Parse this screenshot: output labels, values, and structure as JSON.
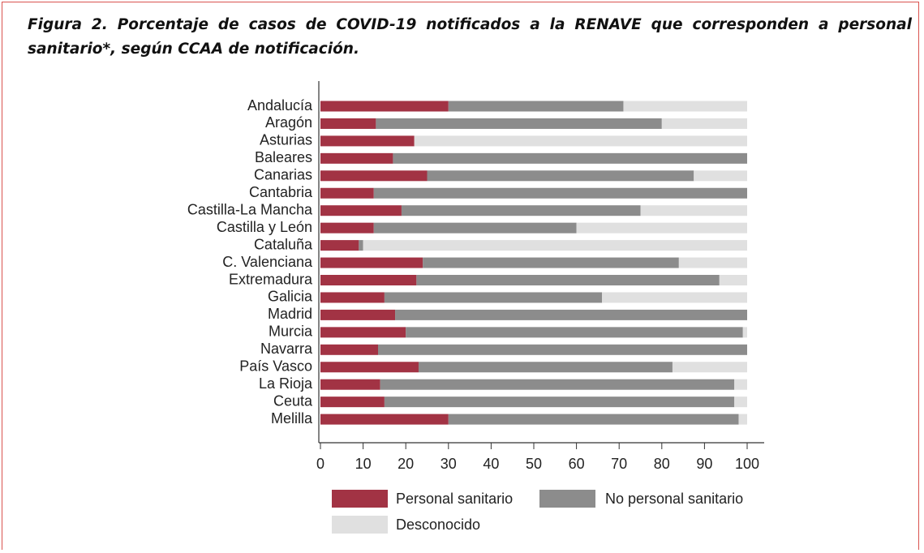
{
  "chart_data": {
    "type": "stacked-barh",
    "title": "Figura 2. Porcentaje de casos de COVID-19 notificados a la RENAVE que corresponden a personal sanitario*, según CCAA de notificación.",
    "categories": [
      "Andalucía",
      "Aragón",
      "Asturias",
      "Baleares",
      "Canarias",
      "Cantabria",
      "Castilla-La Mancha",
      "Castilla y León",
      "Cataluña",
      "C. Valenciana",
      "Extremadura",
      "Galicia",
      "Madrid",
      "Murcia",
      "Navarra",
      "País Vasco",
      "La Rioja",
      "Ceuta",
      "Melilla"
    ],
    "series": [
      {
        "name": "Personal sanitario",
        "color": "#a23344",
        "values": [
          30,
          13,
          22,
          17,
          25,
          12.5,
          19,
          12.5,
          9,
          24,
          22.5,
          15,
          17.5,
          20,
          13.5,
          23,
          14,
          15,
          30
        ]
      },
      {
        "name": "No personal sanitario",
        "color": "#8c8c8c",
        "values": [
          41,
          67,
          0,
          83,
          62.5,
          87.5,
          56,
          47.5,
          1,
          60,
          71,
          51,
          82.5,
          79,
          86.5,
          59.5,
          83,
          82,
          68
        ]
      },
      {
        "name": "Desconocido",
        "color": "#e0e0e0",
        "values": [
          29,
          20,
          78,
          0,
          12.5,
          0,
          25,
          40,
          90,
          16,
          6.5,
          34,
          0,
          1,
          0,
          17.5,
          3,
          3,
          2
        ]
      }
    ],
    "xlim": [
      0,
      100
    ],
    "xticks": [
      0,
      10,
      20,
      30,
      40,
      50,
      60,
      70,
      80,
      90,
      100
    ]
  }
}
